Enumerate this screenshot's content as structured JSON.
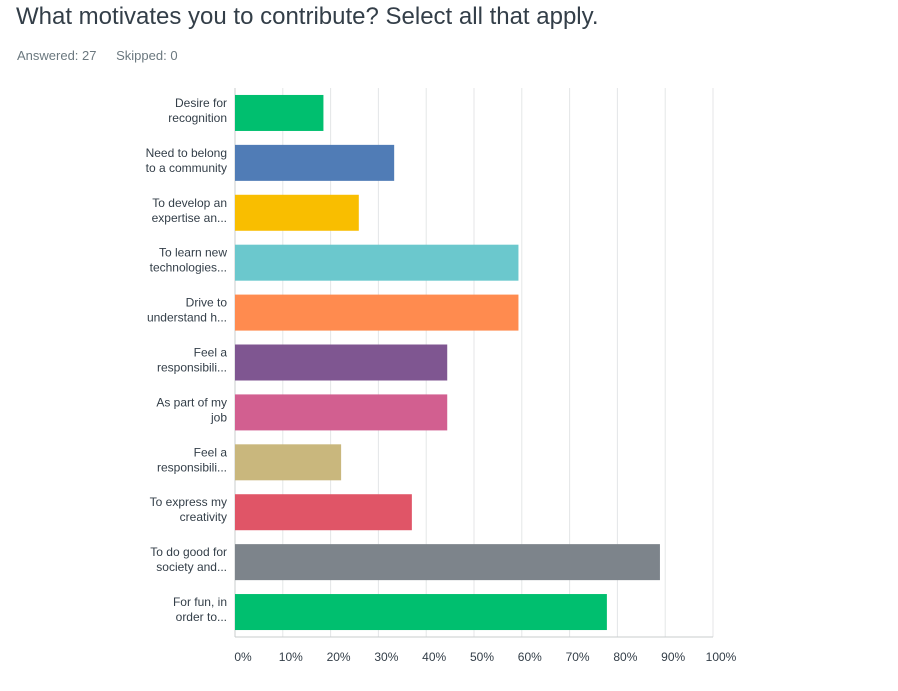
{
  "question": {
    "title": "What motivates you to contribute? Select all that apply.",
    "answered_label": "Answered: 27",
    "skipped_label": "Skipped: 0"
  },
  "chart_data": {
    "type": "bar",
    "orientation": "horizontal",
    "categories": [
      [
        "Desire for",
        "recognition"
      ],
      [
        "Need to belong",
        "to a community"
      ],
      [
        "To develop an",
        "expertise an..."
      ],
      [
        "To learn new",
        "technologies..."
      ],
      [
        "Drive to",
        "understand h..."
      ],
      [
        "Feel a",
        "responsibili..."
      ],
      [
        "As part of my",
        "job"
      ],
      [
        "Feel a",
        "responsibili..."
      ],
      [
        "To express my",
        "creativity"
      ],
      [
        "To do good for",
        "society and..."
      ],
      [
        "For fun, in",
        "order to..."
      ]
    ],
    "values": [
      18.5,
      33.3,
      25.9,
      59.3,
      59.3,
      44.4,
      44.4,
      22.2,
      37.0,
      88.9,
      77.8
    ],
    "colors": [
      "#00bf6f",
      "#507cb6",
      "#f9be00",
      "#6bc8cd",
      "#ff8b4f",
      "#7f5691",
      "#d25f90",
      "#c9b77d",
      "#e05567",
      "#7d848b",
      "#00bf6f"
    ],
    "x_ticks": [
      "0%",
      "10%",
      "20%",
      "30%",
      "40%",
      "50%",
      "60%",
      "70%",
      "80%",
      "90%",
      "100%"
    ],
    "xlim": [
      0,
      100
    ],
    "grid": true
  }
}
